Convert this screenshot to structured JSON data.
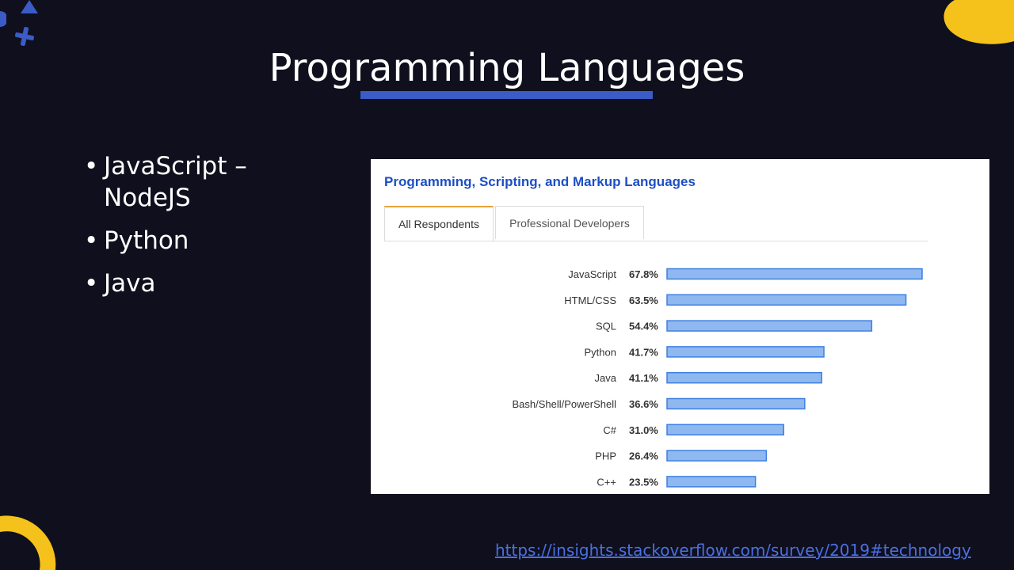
{
  "slide": {
    "title": "Programming Languages",
    "bullets": [
      "JavaScript – NodeJS",
      "Python",
      "Java"
    ],
    "bullet_glyph": "•",
    "source_link": "https://insights.stackoverflow.com/survey/2019#technology"
  },
  "chart_panel": {
    "heading": "Programming, Scripting, and Markup Languages",
    "tabs": [
      {
        "label": "All Respondents",
        "active": true
      },
      {
        "label": "Professional Developers",
        "active": false
      }
    ]
  },
  "colors": {
    "background": "#0f0f1d",
    "accent_blue": "#3b5bc6",
    "accent_yellow": "#f5c21b",
    "bar_fill": "#8fb8f0",
    "bar_stroke": "#3d7fe0",
    "heading_blue": "#1d4fc4"
  },
  "chart_data": {
    "type": "bar",
    "orientation": "horizontal",
    "categories": [
      "JavaScript",
      "HTML/CSS",
      "SQL",
      "Python",
      "Java",
      "Bash/Shell/PowerShell",
      "C#",
      "PHP",
      "C++"
    ],
    "values": [
      67.8,
      63.5,
      54.4,
      41.7,
      41.1,
      36.6,
      31.0,
      26.4,
      23.5
    ],
    "value_labels": [
      "67.8%",
      "63.5%",
      "54.4%",
      "41.7%",
      "41.1%",
      "36.6%",
      "31.0%",
      "26.4%",
      "23.5%"
    ],
    "unit": "%",
    "xlim": [
      0,
      67.8
    ],
    "grid": false,
    "legend": "none"
  }
}
